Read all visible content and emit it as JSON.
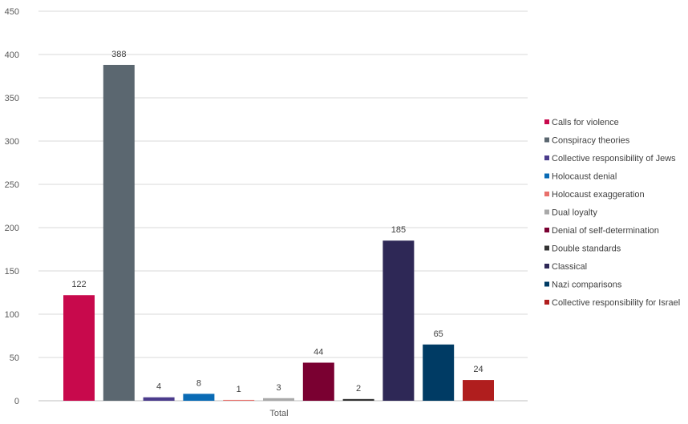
{
  "chart_data": {
    "type": "bar",
    "title": "",
    "xlabel": "",
    "ylabel": "",
    "categories": [
      "Total"
    ],
    "ylim": [
      0,
      450
    ],
    "yticks": [
      0,
      50,
      100,
      150,
      200,
      250,
      300,
      350,
      400,
      450
    ],
    "grid": true,
    "legend_position": "right",
    "series": [
      {
        "name": "Calls for violence",
        "values": [
          122
        ],
        "color": "#C8094C"
      },
      {
        "name": "Conspiracy theories",
        "values": [
          388
        ],
        "color": "#5B6770"
      },
      {
        "name": "Collective responsibility of Jews",
        "values": [
          4
        ],
        "color": "#4B3C8C"
      },
      {
        "name": "Holocaust denial",
        "values": [
          8
        ],
        "color": "#0A6BB5"
      },
      {
        "name": "Holocaust exaggeration",
        "values": [
          1
        ],
        "color": "#E8706B"
      },
      {
        "name": "Dual loyalty",
        "values": [
          3
        ],
        "color": "#A9A9A9"
      },
      {
        "name": "Denial of self-determination",
        "values": [
          44
        ],
        "color": "#7A0031"
      },
      {
        "name": "Double standards",
        "values": [
          2
        ],
        "color": "#333333"
      },
      {
        "name": "Classical",
        "values": [
          185
        ],
        "color": "#2E2856"
      },
      {
        "name": "Nazi comparisons",
        "values": [
          65
        ],
        "color": "#003B64"
      },
      {
        "name": "Collective responsibility for Israel",
        "values": [
          24
        ],
        "color": "#B01E1E"
      }
    ]
  }
}
